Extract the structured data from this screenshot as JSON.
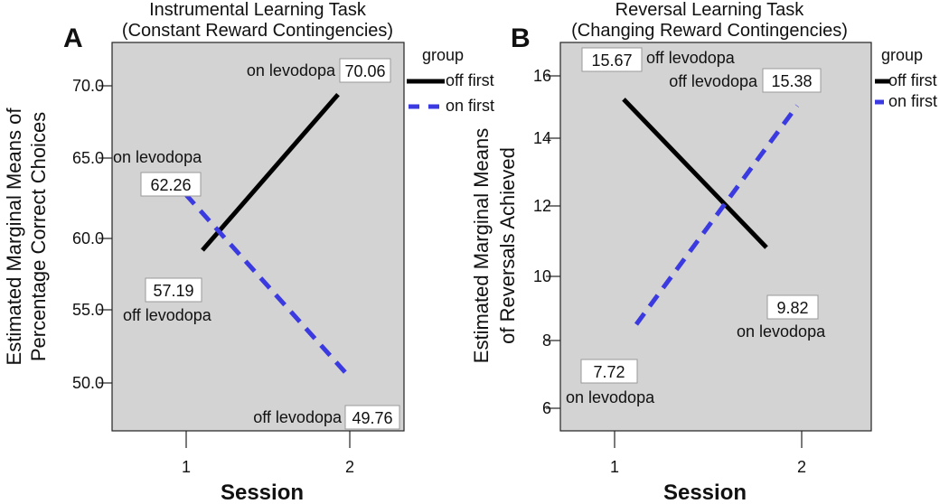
{
  "chart_data": [
    {
      "panel_label": "A",
      "type": "line",
      "title": "Instrumental Learning Task",
      "subtitle": "(Constant Reward Contingencies)",
      "xlabel": "Session",
      "ylabel_line1": "Estimated Marginal Means of",
      "ylabel_line2": "Percentage Correct Choices",
      "x": [
        1,
        2
      ],
      "x_tick_labels": [
        "1",
        "2"
      ],
      "y_ticks": [
        "50.0",
        "55.0",
        "60.0",
        "65.0",
        "70.0"
      ],
      "ylim": [
        46.1,
        72.7
      ],
      "legend_title": "group",
      "legend_position": "right",
      "series": [
        {
          "name": "off first",
          "style": "solid",
          "color": "#000000",
          "values": [
            57.19,
            70.06
          ]
        },
        {
          "name": "on first",
          "style": "dashed",
          "color": "#3a3ae0",
          "values": [
            62.26,
            49.76
          ]
        }
      ],
      "annotations": [
        {
          "value": "57.19",
          "condition": "off levodopa"
        },
        {
          "value": "70.06",
          "condition": "on levodopa"
        },
        {
          "value": "62.26",
          "condition": "on levodopa"
        },
        {
          "value": "49.76",
          "condition": "off levodopa"
        }
      ]
    },
    {
      "panel_label": "B",
      "type": "line",
      "title": "Reversal Learning Task",
      "subtitle": "(Changing Reward Contingencies)",
      "xlabel": "Session",
      "ylabel_line1": "Estimated Marginal Means",
      "ylabel_line2": "of Reversals Achieved",
      "x": [
        1,
        2
      ],
      "x_tick_labels": [
        "1",
        "2"
      ],
      "y_ticks": [
        "6",
        "8",
        "10",
        "12",
        "14",
        "16"
      ],
      "ylim": [
        5.4,
        17.1
      ],
      "legend_title": "group",
      "legend_position": "right",
      "series": [
        {
          "name": "off first",
          "style": "solid",
          "color": "#000000",
          "values": [
            15.67,
            9.82
          ]
        },
        {
          "name": "on first",
          "style": "dashed",
          "color": "#3a3ae0",
          "values": [
            7.72,
            15.38
          ]
        }
      ],
      "annotations": [
        {
          "value": "15.67",
          "condition": "off levodopa"
        },
        {
          "value": "9.82",
          "condition": "on levodopa"
        },
        {
          "value": "7.72",
          "condition": "on levodopa"
        },
        {
          "value": "15.38",
          "condition": "off levodopa"
        }
      ]
    }
  ]
}
